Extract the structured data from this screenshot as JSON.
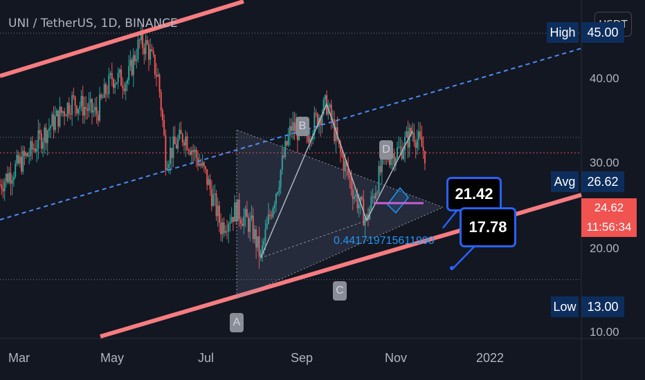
{
  "header": {
    "symbol_title": "UNI / TetherUS, 1D, BINANCE",
    "currency": "USDT"
  },
  "price_axis": {
    "ticks": [
      "40.00",
      "30.00",
      "20.00",
      "10.00"
    ],
    "high_label": "High",
    "high_value": "45.00",
    "avg_label": "Avg",
    "avg_value": "26.62",
    "low_label": "Low",
    "low_value": "13.00",
    "last_price": "24.62",
    "countdown": "11:56:34"
  },
  "time_axis": {
    "labels": [
      "Mar",
      "May",
      "Jul",
      "Sep",
      "Nov",
      "2022"
    ]
  },
  "annotations": {
    "pattern_points": [
      "A",
      "B",
      "C",
      "D"
    ],
    "fib_text": "0.441719715611990",
    "callout_upper": "21.42",
    "callout_lower": "17.78"
  },
  "colors": {
    "background": "#131722",
    "up": "#26a69a",
    "down": "#ef5350",
    "trendline": "#f77c80",
    "accent_blue": "#2962ff"
  },
  "chart_data": {
    "type": "candlestick",
    "symbol": "UNI / TetherUS",
    "interval": "1D",
    "exchange": "BINANCE",
    "x_range": [
      "2021-02-01",
      "2022-02-15"
    ],
    "y_scale": "log",
    "ylim": [
      10,
      45
    ],
    "reference_lines": [
      {
        "name": "High",
        "value": 45.0
      },
      {
        "name": "Avg",
        "value": 26.62
      },
      {
        "name": "Low",
        "value": 13.0
      },
      {
        "name": "Last",
        "value": 24.62
      }
    ],
    "price_path": [
      {
        "date": "2021-02-01",
        "close": 21.0
      },
      {
        "date": "2021-02-20",
        "close": 24.5
      },
      {
        "date": "2021-03-05",
        "close": 28.0
      },
      {
        "date": "2021-03-20",
        "close": 32.0
      },
      {
        "date": "2021-04-05",
        "close": 30.0
      },
      {
        "date": "2021-04-15",
        "close": 36.0
      },
      {
        "date": "2021-04-25",
        "close": 35.5
      },
      {
        "date": "2021-05-03",
        "close": 43.0
      },
      {
        "date": "2021-05-08",
        "close": 42.0
      },
      {
        "date": "2021-05-15",
        "close": 36.0
      },
      {
        "date": "2021-05-20",
        "close": 24.0
      },
      {
        "date": "2021-06-01",
        "close": 27.0
      },
      {
        "date": "2021-06-15",
        "close": 22.0
      },
      {
        "date": "2021-06-25",
        "close": 17.0
      },
      {
        "date": "2021-07-05",
        "close": 18.5
      },
      {
        "date": "2021-07-15",
        "close": 17.0
      },
      {
        "date": "2021-07-21",
        "close": 14.5
      },
      {
        "date": "2021-08-01",
        "close": 21.0
      },
      {
        "date": "2021-08-10",
        "close": 28.0
      },
      {
        "date": "2021-08-20",
        "close": 27.0
      },
      {
        "date": "2021-09-02",
        "close": 31.5
      },
      {
        "date": "2021-09-10",
        "close": 25.0
      },
      {
        "date": "2021-09-20",
        "close": 20.0
      },
      {
        "date": "2021-09-28",
        "close": 17.5
      },
      {
        "date": "2021-10-10",
        "close": 24.0
      },
      {
        "date": "2021-10-20",
        "close": 25.0
      },
      {
        "date": "2021-10-28",
        "close": 27.5
      },
      {
        "date": "2021-11-05",
        "close": 24.62
      }
    ],
    "pattern_points": [
      {
        "name": "A",
        "date": "2021-07-21",
        "price": 14.5
      },
      {
        "name": "B",
        "date": "2021-09-02",
        "price": 31.5
      },
      {
        "name": "C",
        "date": "2021-09-28",
        "price": 17.5
      },
      {
        "name": "D",
        "date": "2021-10-28",
        "price": 27.5
      }
    ]
  }
}
